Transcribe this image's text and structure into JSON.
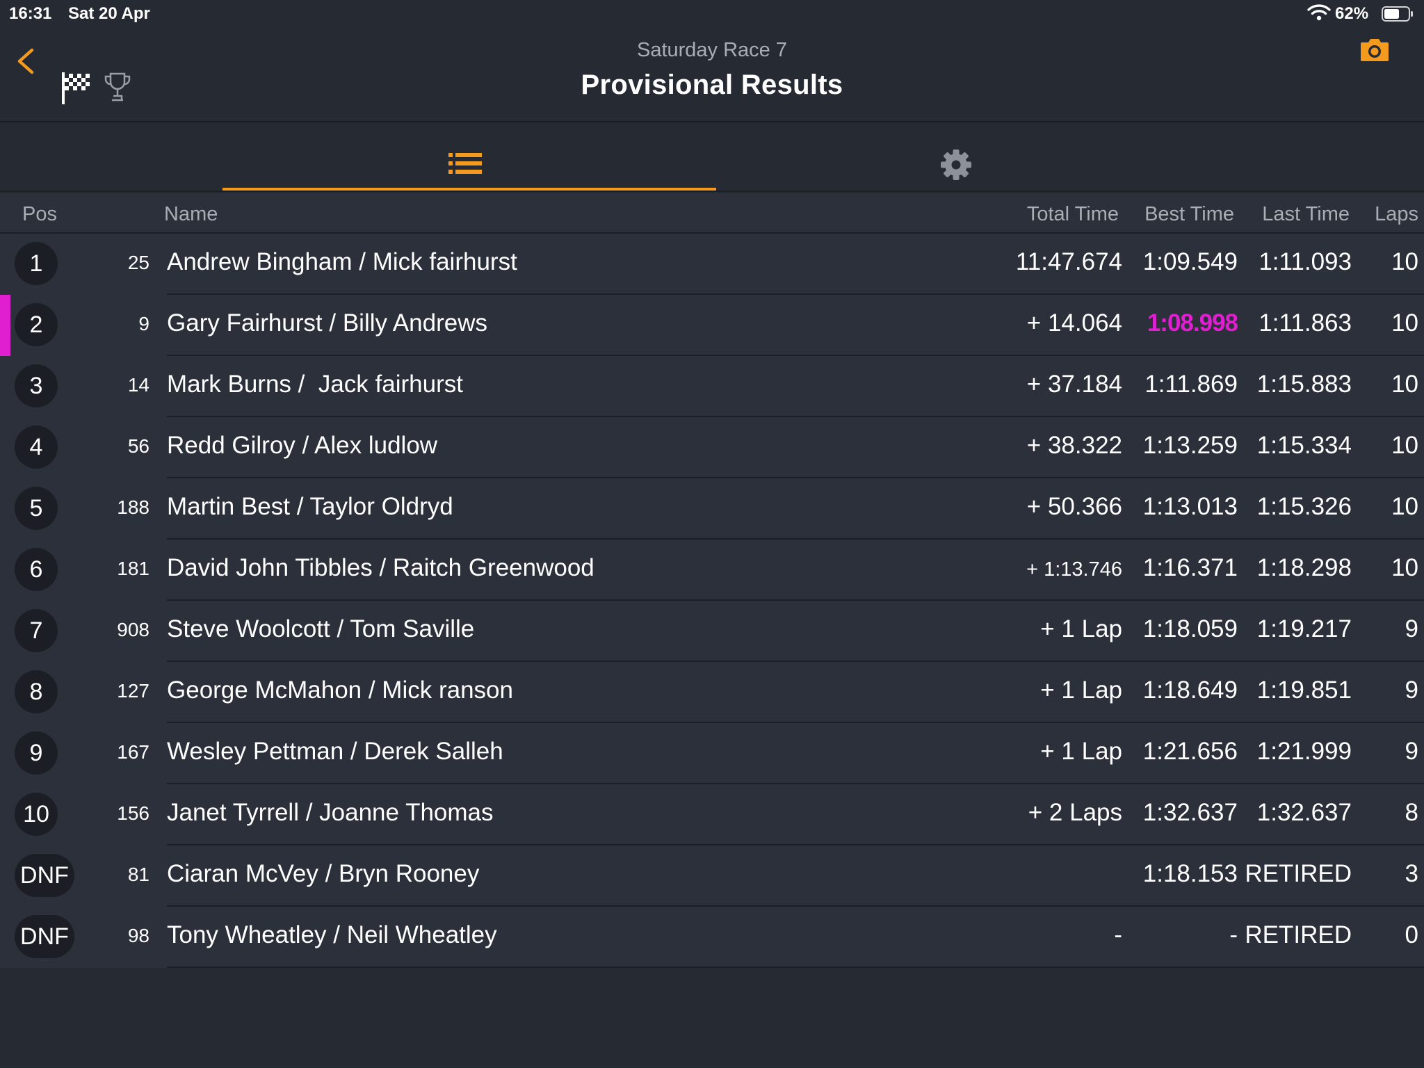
{
  "status_bar": {
    "time": "16:31",
    "date": "Sat 20 Apr",
    "battery_percent": "62%"
  },
  "header": {
    "subtitle": "Saturday Race 7",
    "title": "Provisional Results",
    "accent_color": "#f39a1f",
    "fastest_lap_color": "#e020d0"
  },
  "tabs": [
    {
      "icon": "list-icon",
      "active": true
    },
    {
      "icon": "gear-icon",
      "active": false
    }
  ],
  "columns": {
    "pos": "Pos",
    "name": "Name",
    "total": "Total Time",
    "best": "Best Time",
    "last": "Last Time",
    "laps": "Laps"
  },
  "results": [
    {
      "pos": "1",
      "num": "25",
      "name": "Andrew Bingham / Mick fairhurst",
      "total": "11:47.674",
      "best": "1:09.549",
      "last": "1:11.093",
      "laps": "10"
    },
    {
      "pos": "2",
      "num": "9",
      "name": "Gary Fairhurst / Billy Andrews",
      "total": "+ 14.064",
      "best": "1:08.998",
      "last": "1:11.863",
      "laps": "10"
    },
    {
      "pos": "3",
      "num": "14",
      "name": "Mark Burns /  Jack fairhurst",
      "total": "+ 37.184",
      "best": "1:11.869",
      "last": "1:15.883",
      "laps": "10"
    },
    {
      "pos": "4",
      "num": "56",
      "name": "Redd Gilroy / Alex ludlow",
      "total": "+ 38.322",
      "best": "1:13.259",
      "last": "1:15.334",
      "laps": "10"
    },
    {
      "pos": "5",
      "num": "188",
      "name": "Martin Best / Taylor Oldryd",
      "total": "+ 50.366",
      "best": "1:13.013",
      "last": "1:15.326",
      "laps": "10"
    },
    {
      "pos": "6",
      "num": "181",
      "name": "David John Tibbles / Raitch Greenwood",
      "total": "+ 1:13.746",
      "best": "1:16.371",
      "last": "1:18.298",
      "laps": "10"
    },
    {
      "pos": "7",
      "num": "908",
      "name": "Steve Woolcott / Tom Saville",
      "total": "+ 1 Lap",
      "best": "1:18.059",
      "last": "1:19.217",
      "laps": "9"
    },
    {
      "pos": "8",
      "num": "127",
      "name": "George McMahon / Mick ranson",
      "total": "+ 1 Lap",
      "best": "1:18.649",
      "last": "1:19.851",
      "laps": "9"
    },
    {
      "pos": "9",
      "num": "167",
      "name": "Wesley Pettman / Derek Salleh",
      "total": "+ 1 Lap",
      "best": "1:21.656",
      "last": "1:21.999",
      "laps": "9"
    },
    {
      "pos": "10",
      "num": "156",
      "name": "Janet Tyrrell / Joanne Thomas",
      "total": "+ 2 Laps",
      "best": "1:32.637",
      "last": "1:32.637",
      "laps": "8"
    },
    {
      "pos": "DNF",
      "num": "81",
      "name": "Ciaran McVey / Bryn Rooney",
      "total": "",
      "best": "1:18.153",
      "last": "RETIRED",
      "laps": "3"
    },
    {
      "pos": "DNF",
      "num": "98",
      "name": "Tony Wheatley / Neil Wheatley",
      "total": "-",
      "best": "-",
      "last": "RETIRED",
      "laps": "0"
    }
  ]
}
